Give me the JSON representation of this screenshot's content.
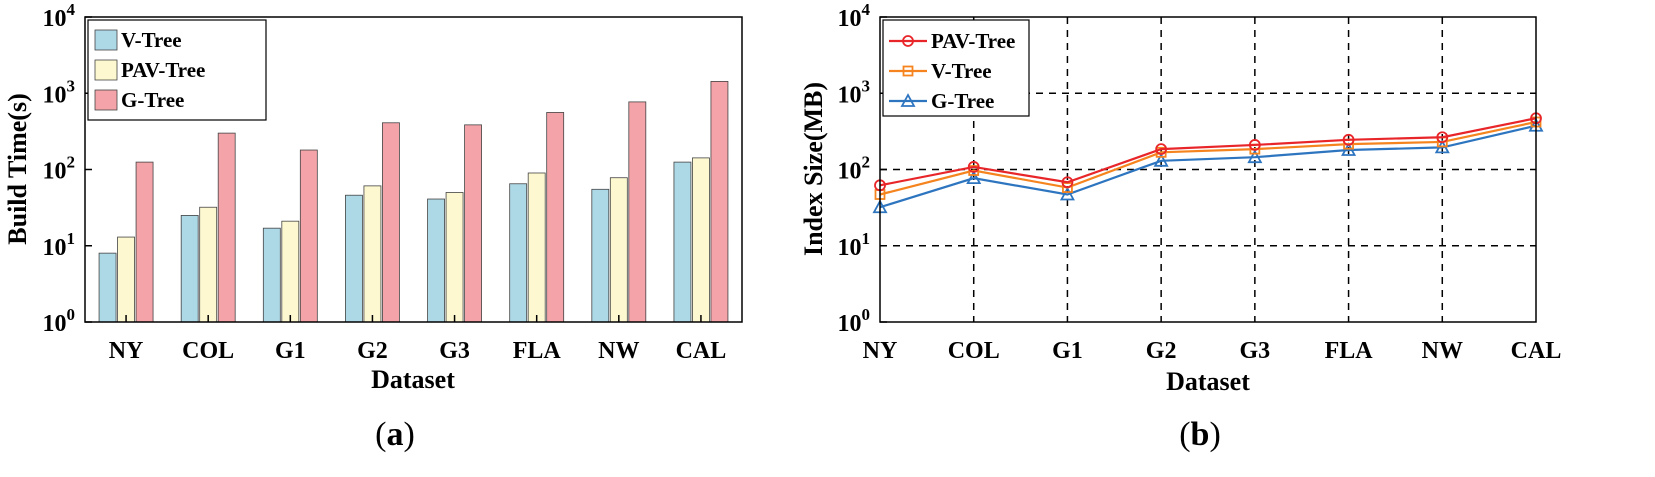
{
  "figure": {
    "panel_a_label": {
      "open": "(",
      "letter": "a",
      "close": ")"
    },
    "panel_b_label": {
      "open": "(",
      "letter": "b",
      "close": ")"
    }
  },
  "chart_data": [
    {
      "type": "bar",
      "categories": [
        "NY",
        "COL",
        "G1",
        "G2",
        "G3",
        "FLA",
        "NW",
        "CAL"
      ],
      "series": [
        {
          "name": "V-Tree",
          "color": "#add8e6",
          "values": [
            8,
            25,
            17,
            46,
            41,
            65,
            55,
            125
          ]
        },
        {
          "name": "PAV-Tree",
          "color": "#fdf8cf",
          "values": [
            13,
            32,
            21,
            61,
            50,
            90,
            78,
            142
          ]
        },
        {
          "name": "G-Tree",
          "color": "#f4a3a8",
          "values": [
            125,
            300,
            180,
            410,
            385,
            560,
            770,
            1430
          ]
        }
      ],
      "xlabel": "Dataset",
      "ylabel": "Build Time(s)",
      "yscale": "log",
      "ylim": [
        1,
        10000
      ],
      "yticks": [
        {
          "base": "10",
          "exp": "0"
        },
        {
          "base": "10",
          "exp": "1"
        },
        {
          "base": "10",
          "exp": "2"
        },
        {
          "base": "10",
          "exp": "3"
        },
        {
          "base": "10",
          "exp": "4"
        }
      ],
      "grid": false,
      "legend": "top-left"
    },
    {
      "type": "line",
      "categories": [
        "NY",
        "COL",
        "G1",
        "G2",
        "G3",
        "FLA",
        "NW",
        "CAL"
      ],
      "series": [
        {
          "name": "PAV-Tree",
          "color": "#e8262a",
          "marker": "circle",
          "values": [
            62,
            108,
            68,
            185,
            210,
            245,
            265,
            470
          ]
        },
        {
          "name": "V-Tree",
          "color": "#f5841f",
          "marker": "square",
          "values": [
            47,
            97,
            58,
            168,
            185,
            215,
            230,
            420
          ]
        },
        {
          "name": "G-Tree",
          "color": "#2e75c0",
          "marker": "triangle",
          "values": [
            32,
            77,
            47,
            130,
            145,
            180,
            195,
            375
          ]
        }
      ],
      "xlabel": "Dataset",
      "ylabel": "Index Size(MB)",
      "yscale": "log",
      "ylim": [
        1,
        10000
      ],
      "yticks": [
        {
          "base": "10",
          "exp": "0"
        },
        {
          "base": "10",
          "exp": "1"
        },
        {
          "base": "10",
          "exp": "2"
        },
        {
          "base": "10",
          "exp": "3"
        },
        {
          "base": "10",
          "exp": "4"
        }
      ],
      "grid": true,
      "legend": "top-left"
    }
  ]
}
